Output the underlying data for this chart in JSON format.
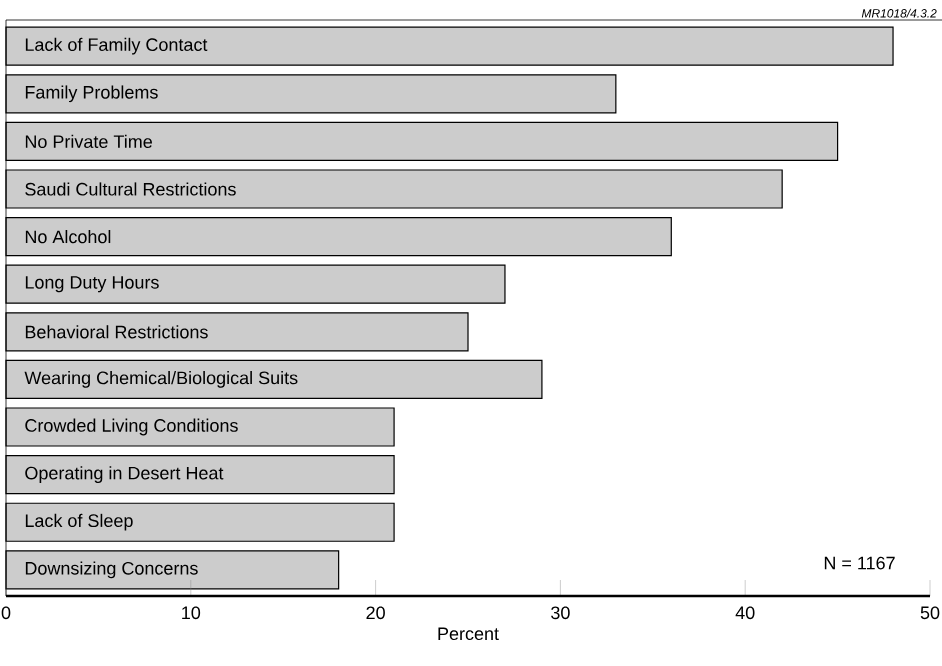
{
  "chart_data": {
    "type": "bar",
    "orientation": "horizontal",
    "xlabel": "Percent",
    "categories": [
      "Lack of Family Contact",
      "Family Problems",
      "No Private Time",
      "Saudi Cultural Restrictions",
      "No Alcohol",
      "Long Duty Hours",
      "Behavioral Restrictions",
      "Wearing Chemical/Biological Suits",
      "Crowded Living Conditions",
      "Operating in Desert Heat",
      "Lack of Sleep",
      "Downsizing Concerns"
    ],
    "values": [
      48,
      33,
      45,
      42,
      36,
      27,
      25,
      29,
      21,
      21,
      21,
      18
    ],
    "color": "#cccccc",
    "xlim": [
      0,
      50
    ],
    "xticks": [
      0,
      10,
      20,
      30,
      40,
      50
    ],
    "annotations": [
      "*MR1018/4.3.2*",
      "N = 1167"
    ]
  }
}
